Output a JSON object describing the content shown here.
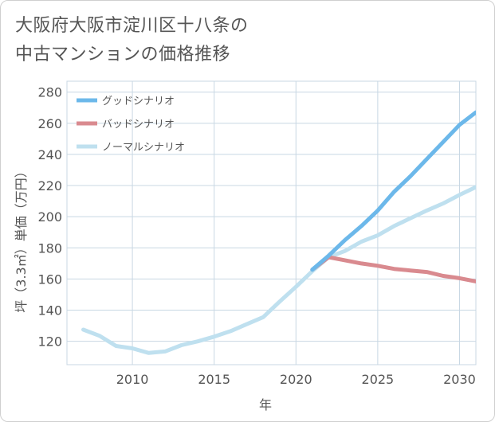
{
  "title_lines": [
    "大阪府大阪市淀川区十八条の",
    "中古マンションの価格推移"
  ],
  "chart_data": {
    "type": "line",
    "xlabel": "年",
    "ylabel": "坪（3.3㎡）単価（万円）",
    "xlim": [
      2006,
      2031
    ],
    "ylim": [
      105,
      287
    ],
    "xticks": [
      2010,
      2015,
      2020,
      2025,
      2030
    ],
    "yticks": [
      120,
      140,
      160,
      180,
      200,
      220,
      240,
      260,
      280
    ],
    "grid": true,
    "legend_position": "top-left",
    "series": [
      {
        "name": "グッドシナリオ",
        "color": "#6cb8ea",
        "points": [
          [
            2021,
            166
          ],
          [
            2022,
            175
          ],
          [
            2023,
            185
          ],
          [
            2024,
            194
          ],
          [
            2025,
            204
          ],
          [
            2026,
            216
          ],
          [
            2027,
            226
          ],
          [
            2028,
            237
          ],
          [
            2029,
            248
          ],
          [
            2030,
            259
          ],
          [
            2031,
            267
          ]
        ]
      },
      {
        "name": "バッドシナリオ",
        "color": "#d98a8f",
        "points": [
          [
            2021,
            166
          ],
          [
            2022,
            174
          ],
          [
            2023,
            172
          ],
          [
            2024,
            170
          ],
          [
            2025,
            168.5
          ],
          [
            2026,
            166.5
          ],
          [
            2027,
            165.5
          ],
          [
            2028,
            164.5
          ],
          [
            2029,
            162
          ],
          [
            2030,
            160.5
          ],
          [
            2031,
            158.5
          ]
        ]
      },
      {
        "name": "ノーマルシナリオ",
        "color": "#bfe0ef",
        "points": [
          [
            2007,
            127.5
          ],
          [
            2008,
            123.5
          ],
          [
            2009,
            117
          ],
          [
            2010,
            115.5
          ],
          [
            2011,
            112.5
          ],
          [
            2012,
            113.5
          ],
          [
            2013,
            117.5
          ],
          [
            2014,
            120
          ],
          [
            2015,
            123
          ],
          [
            2016,
            126.5
          ],
          [
            2017,
            131
          ],
          [
            2018,
            135.5
          ],
          [
            2019,
            145.5
          ],
          [
            2020,
            155
          ],
          [
            2021,
            165
          ],
          [
            2022,
            174
          ],
          [
            2023,
            178
          ],
          [
            2024,
            184
          ],
          [
            2025,
            188
          ],
          [
            2026,
            194
          ],
          [
            2027,
            199
          ],
          [
            2028,
            204
          ],
          [
            2029,
            208.5
          ],
          [
            2030,
            214
          ],
          [
            2031,
            219
          ]
        ]
      }
    ]
  }
}
